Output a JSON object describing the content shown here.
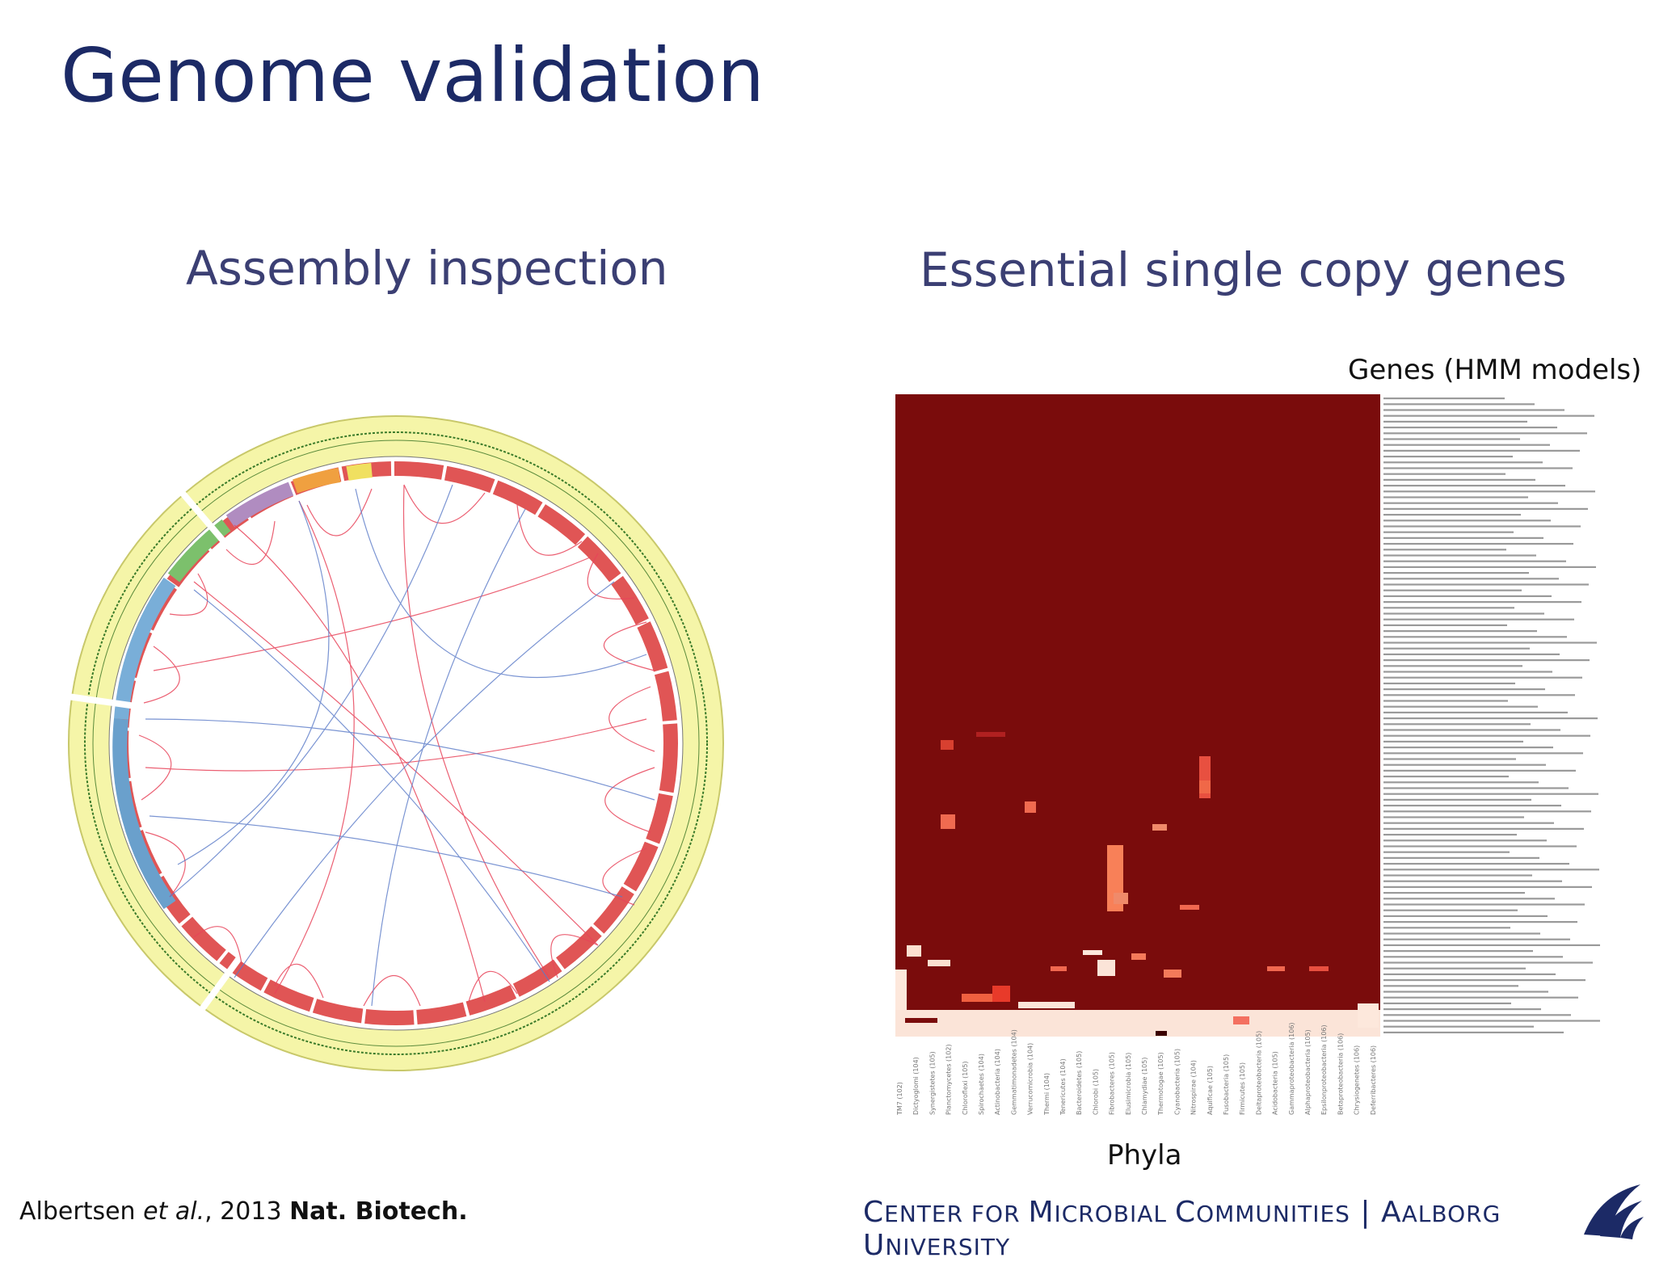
{
  "slide": {
    "title": "Genome validation",
    "left_heading": "Assembly inspection",
    "right_heading": "Essential single copy genes",
    "heatmap_y_label": "Genes (HMM models)",
    "heatmap_x_label": "Phyla",
    "citation": {
      "author": "Albertsen ",
      "etal": "et al.",
      "year": ", 2013 ",
      "journal": "Nat. Biotech."
    },
    "footer": {
      "c": "C",
      "enter": "ENTER FOR ",
      "m": "M",
      "icrobial": "ICROBIAL ",
      "c2": "C",
      "ommunities": "OMMUNITIES",
      "sep": " | ",
      "a": "A",
      "alborg": "ALBORG ",
      "u": "U",
      "niversity": "NIVERSITY"
    }
  },
  "colors": {
    "title": "#1c2a66",
    "heatmap_base": "#7a0c0c",
    "circos_ring": "#f5f5a8",
    "links_red": "#e8445a",
    "links_blue": "#5a7ac8"
  },
  "heatmap": {
    "phyla": [
      "TM7 (102)",
      "Dictyoglomi (104)",
      "Synergistetes (105)",
      "Planctomycetes (102)",
      "Chloroflexi (105)",
      "Spirochaetes (104)",
      "Actinobacteria (104)",
      "Gemmatimonadetes (104)",
      "Verrucomicrobia (104)",
      "Thermi (104)",
      "Tenericutes (104)",
      "Bacteroidetes (105)",
      "Chlorobi (105)",
      "Fibrobacteres (105)",
      "Elusimicrobia (105)",
      "Chlamydiae (105)",
      "Thermotogae (105)",
      "Cyanobacteria (105)",
      "Nitrospirae (104)",
      "Aquificae (105)",
      "Fusobacteria (105)",
      "Firmicutes (105)",
      "Deltaproteobacteria (105)",
      "Acidobacteria (105)",
      "Gammaproteobacteria (106)",
      "Alphaproteobacteria (105)",
      "Epsilonproteobacteria (106)",
      "Betaproteobacteria (106)",
      "Chrysiogenetes (106)",
      "Deferribacteres (106)"
    ]
  }
}
